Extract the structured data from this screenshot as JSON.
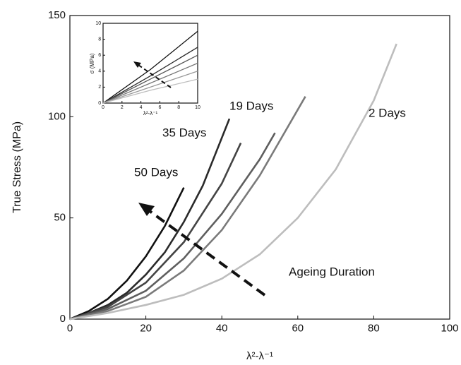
{
  "chart_data": [
    {
      "type": "line",
      "y_label": "True Stress (MPa)",
      "x_label": "λ²-λ⁻¹",
      "annotation": "Ageing Duration",
      "xlim": [
        0,
        100
      ],
      "xticks": [
        0,
        20,
        40,
        60,
        80,
        100
      ],
      "ylim": [
        0,
        150
      ],
      "yticks": [
        0,
        50,
        100,
        150
      ],
      "series": [
        {
          "name": "50 Days",
          "color": "#111111",
          "x": [
            0,
            5,
            10,
            15,
            20,
            25,
            30
          ],
          "values": [
            0,
            4,
            10,
            19,
            31,
            46,
            65
          ]
        },
        {
          "name": "35 Days",
          "color": "#2a2a2a",
          "x": [
            0,
            5,
            10,
            15,
            20,
            25,
            30,
            35,
            42
          ],
          "values": [
            0,
            3,
            7,
            13,
            22,
            33,
            48,
            66,
            99
          ]
        },
        {
          "color": "#444444",
          "x": [
            0,
            10,
            20,
            30,
            40,
            45
          ],
          "values": [
            0,
            6,
            18,
            38,
            67,
            87
          ]
        },
        {
          "name": "19 Days",
          "color": "#5e5e5e",
          "x": [
            0,
            10,
            20,
            30,
            40,
            50,
            54
          ],
          "values": [
            0,
            5,
            14,
            30,
            52,
            79,
            92
          ]
        },
        {
          "color": "#7a7a7a",
          "x": [
            0,
            10,
            20,
            30,
            40,
            50,
            62
          ],
          "values": [
            0,
            4,
            11,
            24,
            44,
            71,
            110
          ]
        },
        {
          "name": "2 Days",
          "color": "#bdbdbd",
          "x": [
            0,
            10,
            20,
            30,
            40,
            50,
            60,
            70,
            80,
            86
          ],
          "values": [
            0,
            3,
            7,
            12,
            20,
            32,
            50,
            74,
            108,
            136
          ]
        }
      ]
    },
    {
      "type": "line",
      "y_label": "σ (MPa)",
      "x_label": "λ²-λ⁻¹",
      "xlim": [
        0,
        10
      ],
      "xticks": [
        0,
        2,
        4,
        6,
        8,
        10
      ],
      "ylim": [
        0,
        10
      ],
      "yticks": [
        0,
        2,
        4,
        6,
        8,
        10
      ],
      "series": [
        {
          "color": "#111111",
          "x": [
            0,
            5,
            10
          ],
          "values": [
            0,
            4.2,
            9
          ]
        },
        {
          "color": "#2a2a2a",
          "x": [
            0,
            5,
            10
          ],
          "values": [
            0,
            3.4,
            7
          ]
        },
        {
          "color": "#555555",
          "x": [
            0,
            5,
            10
          ],
          "values": [
            0,
            3,
            6
          ]
        },
        {
          "color": "#777777",
          "x": [
            0,
            5,
            10
          ],
          "values": [
            0,
            2.5,
            5
          ]
        },
        {
          "color": "#999999",
          "x": [
            0,
            5,
            10
          ],
          "values": [
            0,
            2,
            4
          ]
        },
        {
          "color": "#bdbdbd",
          "x": [
            0,
            5,
            10
          ],
          "values": [
            0,
            1.6,
            3
          ]
        }
      ]
    }
  ]
}
